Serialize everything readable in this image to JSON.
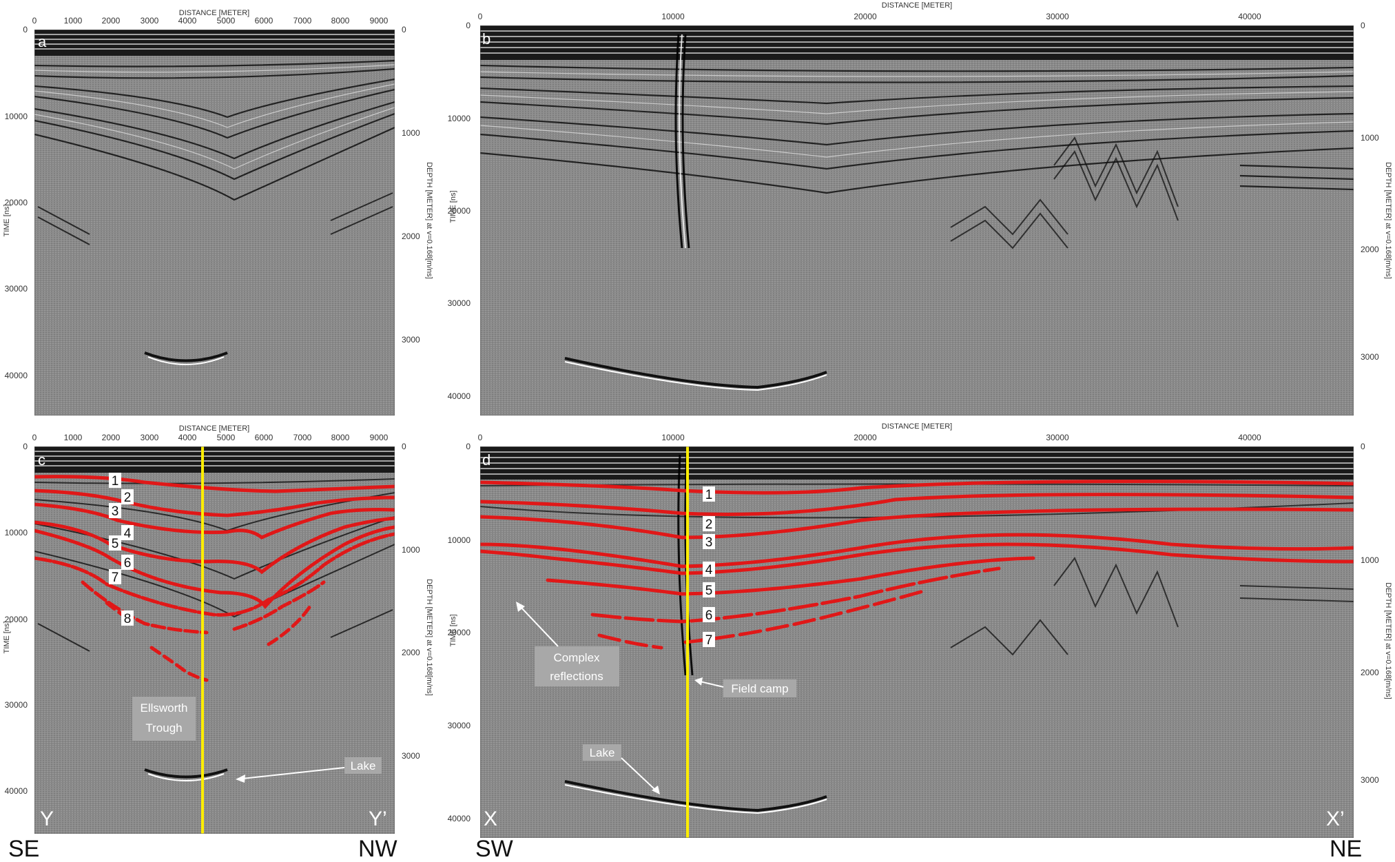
{
  "figure": {
    "panels": [
      {
        "id": "a",
        "label": "a",
        "x_axis_title": "DISTANCE [METER]",
        "y_axis_title": "TIME [ns]",
        "right_axis_title": "DEPTH [METER] at v=0.168[m/ns]",
        "x_ticks": [
          "0",
          "1000",
          "2000",
          "3000",
          "4000",
          "5000",
          "6000",
          "7000",
          "8000",
          "9000"
        ],
        "y_ticks": [
          "0",
          "10000",
          "20000",
          "30000",
          "40000"
        ],
        "depth_ticks": [
          "0",
          "1000",
          "2000",
          "3000"
        ]
      },
      {
        "id": "b",
        "label": "b",
        "x_axis_title": "DISTANCE [METER]",
        "y_axis_title": "TIME [ns]",
        "right_axis_title": "DEPTH [METER] at v=0.168[m/ns]",
        "x_ticks": [
          "0",
          "10000",
          "20000",
          "30000",
          "40000"
        ],
        "y_ticks": [
          "0",
          "10000",
          "20000",
          "30000",
          "40000"
        ],
        "depth_ticks": [
          "0",
          "1000",
          "2000",
          "3000"
        ]
      },
      {
        "id": "c",
        "label": "c",
        "x_axis_title": "DISTANCE [METER]",
        "y_axis_title": "TIME [ns]",
        "right_axis_title": "DEPTH [METER] at v=0.168[m/ns]",
        "x_ticks": [
          "0",
          "1000",
          "2000",
          "3000",
          "4000",
          "5000",
          "6000",
          "7000",
          "8000",
          "9000"
        ],
        "y_ticks": [
          "0",
          "10000",
          "20000",
          "30000",
          "40000"
        ],
        "depth_ticks": [
          "0",
          "1000",
          "2000",
          "3000"
        ],
        "horizon_numbers": [
          "1",
          "2",
          "3",
          "4",
          "5",
          "6",
          "7",
          "8"
        ],
        "annotations": {
          "trough": [
            "Ellsworth",
            "Trough"
          ],
          "lake": "Lake"
        },
        "corner_left": "Y",
        "corner_right": "Y’",
        "dir_left": "SE",
        "dir_right": "NW"
      },
      {
        "id": "d",
        "label": "d",
        "x_axis_title": "DISTANCE [METER]",
        "y_axis_title": "TIME [ns]",
        "right_axis_title": "DEPTH [METER] at v=0.168[m/ns]",
        "x_ticks": [
          "0",
          "10000",
          "20000",
          "30000",
          "40000"
        ],
        "y_ticks": [
          "0",
          "10000",
          "20000",
          "30000",
          "40000"
        ],
        "depth_ticks": [
          "0",
          "1000",
          "2000",
          "3000"
        ],
        "horizon_numbers": [
          "1",
          "2",
          "3",
          "4",
          "5",
          "6",
          "7"
        ],
        "annotations": {
          "complex": [
            "Complex",
            "reflections"
          ],
          "camp": "Field camp",
          "lake": "Lake"
        },
        "corner_left": "X",
        "corner_right": "X’",
        "dir_left": "SW",
        "dir_right": "NE"
      }
    ],
    "colors": {
      "horizon": "#e01818",
      "marker_line": "#ffee00",
      "panel_bg": "#8a8a8a",
      "label_box": "#a8a8a8"
    }
  }
}
